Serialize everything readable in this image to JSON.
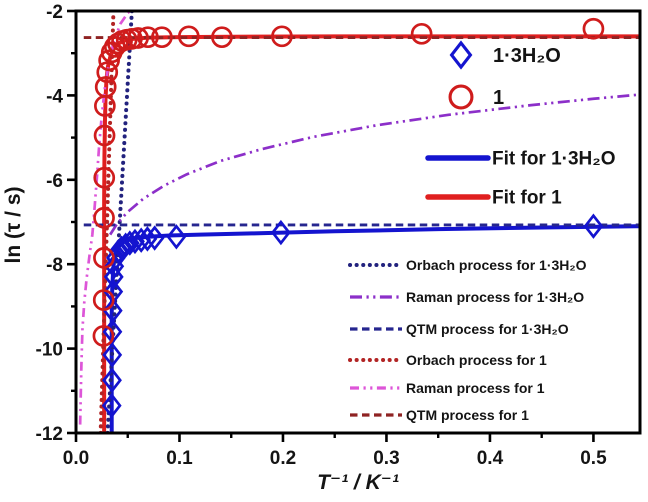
{
  "figure": {
    "background": "#ffffff",
    "frame_color": "#000000",
    "text_color": "#141414"
  },
  "chart_data": {
    "type": "line",
    "title": "",
    "xlabel": "T⁻¹ / K⁻¹",
    "ylabel": "ln (τ / s)",
    "xlim": [
      0,
      0.545
    ],
    "ylim": [
      -12,
      -2
    ],
    "grid": false,
    "x_major_ticks": [
      0.0,
      0.1,
      0.2,
      0.3,
      0.4,
      0.5
    ],
    "x_tick_labels": [
      "0.0",
      "0.1",
      "0.2",
      "0.3",
      "0.4",
      "0.5"
    ],
    "x_minor_ticks": [
      0.05,
      0.15,
      0.25,
      0.35,
      0.45
    ],
    "y_major_ticks": [
      -12,
      -10,
      -8,
      -6,
      -4,
      -2
    ],
    "y_tick_labels": [
      "-12",
      "-10",
      "-8",
      "-6",
      "-4",
      "-2"
    ],
    "y_minor_ticks": [
      -11,
      -9,
      -7,
      -5,
      -3
    ],
    "series": [
      {
        "id": "fit-hydrate",
        "name": "Fit for 1·3H₂O",
        "kind": "line",
        "color": "#1414cf",
        "width": 4,
        "dash": "",
        "points": [
          [
            0.0345,
            -12
          ],
          [
            0.0345,
            -9.2
          ],
          [
            0.035,
            -8.6
          ],
          [
            0.036,
            -8.1
          ],
          [
            0.0375,
            -7.8
          ],
          [
            0.04,
            -7.62
          ],
          [
            0.044,
            -7.5
          ],
          [
            0.05,
            -7.43
          ],
          [
            0.058,
            -7.38
          ],
          [
            0.07,
            -7.35
          ],
          [
            0.09,
            -7.32
          ],
          [
            0.12,
            -7.3
          ],
          [
            0.17,
            -7.27
          ],
          [
            0.25,
            -7.22
          ],
          [
            0.35,
            -7.17
          ],
          [
            0.45,
            -7.13
          ],
          [
            0.545,
            -7.1
          ]
        ]
      },
      {
        "id": "fit-1",
        "name": "Fit for 1",
        "kind": "line",
        "color": "#e01f1f",
        "width": 4,
        "dash": "",
        "points": [
          [
            0.0272,
            -12
          ],
          [
            0.0272,
            -6.5
          ],
          [
            0.0275,
            -5.4
          ],
          [
            0.028,
            -4.6
          ],
          [
            0.0285,
            -4.1
          ],
          [
            0.0295,
            -3.6
          ],
          [
            0.031,
            -3.3
          ],
          [
            0.0335,
            -3.05
          ],
          [
            0.037,
            -2.88
          ],
          [
            0.041,
            -2.77
          ],
          [
            0.047,
            -2.7
          ],
          [
            0.055,
            -2.66
          ],
          [
            0.07,
            -2.63
          ],
          [
            0.1,
            -2.62
          ],
          [
            0.15,
            -2.61
          ],
          [
            0.25,
            -2.6
          ],
          [
            0.4,
            -2.6
          ],
          [
            0.545,
            -2.6
          ]
        ]
      },
      {
        "id": "orbach-hydrate",
        "name": "Orbach process for 1·3H₂O",
        "kind": "line",
        "color": "#22227e",
        "width": 4,
        "dash": "0.1 6.5",
        "linecap": "round",
        "points": [
          [
            0.0305,
            -12
          ],
          [
            0.054,
            -2
          ]
        ]
      },
      {
        "id": "raman-hydrate",
        "name": "Raman process for 1·3H₂O",
        "kind": "line",
        "color": "#8c2fc9",
        "width": 2.7,
        "dash": "12 4.5 2.2 4.5 2.2 4.5",
        "points": [
          [
            0.033,
            -7.3
          ],
          [
            0.04,
            -7.03
          ],
          [
            0.05,
            -6.76
          ],
          [
            0.065,
            -6.45
          ],
          [
            0.085,
            -6.14
          ],
          [
            0.107,
            -5.87
          ],
          [
            0.14,
            -5.55
          ],
          [
            0.18,
            -5.27
          ],
          [
            0.23,
            -4.98
          ],
          [
            0.29,
            -4.71
          ],
          [
            0.36,
            -4.46
          ],
          [
            0.44,
            -4.23
          ],
          [
            0.5,
            -4.08
          ],
          [
            0.545,
            -3.98
          ]
        ]
      },
      {
        "id": "qtm-hydrate",
        "name": "QTM process for 1·3H₂O",
        "kind": "line",
        "color": "#26268f",
        "width": 2.8,
        "dash": "7.5 4.5",
        "points": [
          [
            0.0075,
            -7.07
          ],
          [
            0.545,
            -7.07
          ]
        ]
      },
      {
        "id": "orbach-1",
        "name": "Orbach process for 1",
        "kind": "line",
        "color": "#b22424",
        "width": 4,
        "dash": "0.1 6.5",
        "linecap": "round",
        "points": [
          [
            0.0238,
            -12
          ],
          [
            0.0362,
            -2
          ]
        ]
      },
      {
        "id": "raman-1",
        "name": "Raman process for 1",
        "kind": "line",
        "color": "#dd55d8",
        "width": 2.7,
        "dash": "9 4.5 2.2 4.5 2.2 4.5",
        "points": [
          [
            0.004,
            -11.8
          ],
          [
            0.0052,
            -10.4
          ],
          [
            0.0062,
            -9.55
          ],
          [
            0.008,
            -8.9
          ],
          [
            0.0102,
            -8.35
          ],
          [
            0.013,
            -7.8
          ],
          [
            0.0158,
            -7.3
          ],
          [
            0.018,
            -6.65
          ],
          [
            0.0202,
            -5.95
          ],
          [
            0.0222,
            -5.25
          ],
          [
            0.0248,
            -4.5
          ],
          [
            0.028,
            -3.8
          ],
          [
            0.032,
            -3.2
          ],
          [
            0.0368,
            -2.7
          ],
          [
            0.043,
            -2.3
          ],
          [
            0.05,
            -2.05
          ],
          [
            0.056,
            -1.9
          ]
        ]
      },
      {
        "id": "qtm-1",
        "name": "QTM process for 1",
        "kind": "line",
        "color": "#8f2323",
        "width": 2.8,
        "dash": "7.5 4.5",
        "points": [
          [
            0.0075,
            -2.63
          ],
          [
            0.545,
            -2.63
          ]
        ]
      },
      {
        "id": "sample-hydrate",
        "name": "1·3H₂O",
        "kind": "scatter",
        "marker": "diamond",
        "color": "#1414cf",
        "points": [
          [
            0.0345,
            -11.35
          ],
          [
            0.0348,
            -10.75
          ],
          [
            0.035,
            -10.15
          ],
          [
            0.0352,
            -9.6
          ],
          [
            0.0355,
            -9.1
          ],
          [
            0.036,
            -8.65
          ],
          [
            0.0365,
            -8.3
          ],
          [
            0.037,
            -8.05
          ],
          [
            0.0385,
            -7.85
          ],
          [
            0.041,
            -7.7
          ],
          [
            0.044,
            -7.62
          ],
          [
            0.048,
            -7.55
          ],
          [
            0.052,
            -7.5
          ],
          [
            0.057,
            -7.46
          ],
          [
            0.063,
            -7.43
          ],
          [
            0.069,
            -7.4
          ],
          [
            0.076,
            -7.38
          ],
          [
            0.097,
            -7.35
          ],
          [
            0.198,
            -7.25
          ],
          [
            0.5,
            -7.1
          ]
        ]
      },
      {
        "id": "sample-1",
        "name": "1",
        "kind": "scatter",
        "marker": "circle",
        "color": "#cf1c1c",
        "points": [
          [
            0.0265,
            -9.7
          ],
          [
            0.0268,
            -8.85
          ],
          [
            0.027,
            -7.85
          ],
          [
            0.0271,
            -6.9
          ],
          [
            0.0273,
            -5.95
          ],
          [
            0.0276,
            -4.95
          ],
          [
            0.0279,
            -4.25
          ],
          [
            0.0287,
            -3.8
          ],
          [
            0.0302,
            -3.45
          ],
          [
            0.032,
            -3.17
          ],
          [
            0.0345,
            -2.98
          ],
          [
            0.0375,
            -2.85
          ],
          [
            0.0405,
            -2.77
          ],
          [
            0.0445,
            -2.71
          ],
          [
            0.049,
            -2.68
          ],
          [
            0.054,
            -2.66
          ],
          [
            0.06,
            -2.64
          ],
          [
            0.0695,
            -2.62
          ],
          [
            0.083,
            -2.62
          ],
          [
            0.109,
            -2.6
          ],
          [
            0.141,
            -2.62
          ],
          [
            0.199,
            -2.6
          ],
          [
            0.334,
            -2.54
          ],
          [
            0.5,
            -2.42
          ]
        ]
      }
    ],
    "legend": {
      "position": "inside-right",
      "marker_entries": [
        "1·3H₂O",
        "1"
      ],
      "fit_entries": [
        "Fit for 1·3H₂O",
        "Fit for 1"
      ],
      "process_entries": [
        "Orbach process for 1·3H₂O",
        "Raman process for 1·3H₂O",
        "QTM process for 1·3H₂O",
        "Orbach process for 1",
        "Raman process for 1",
        "QTM process for 1"
      ]
    }
  }
}
